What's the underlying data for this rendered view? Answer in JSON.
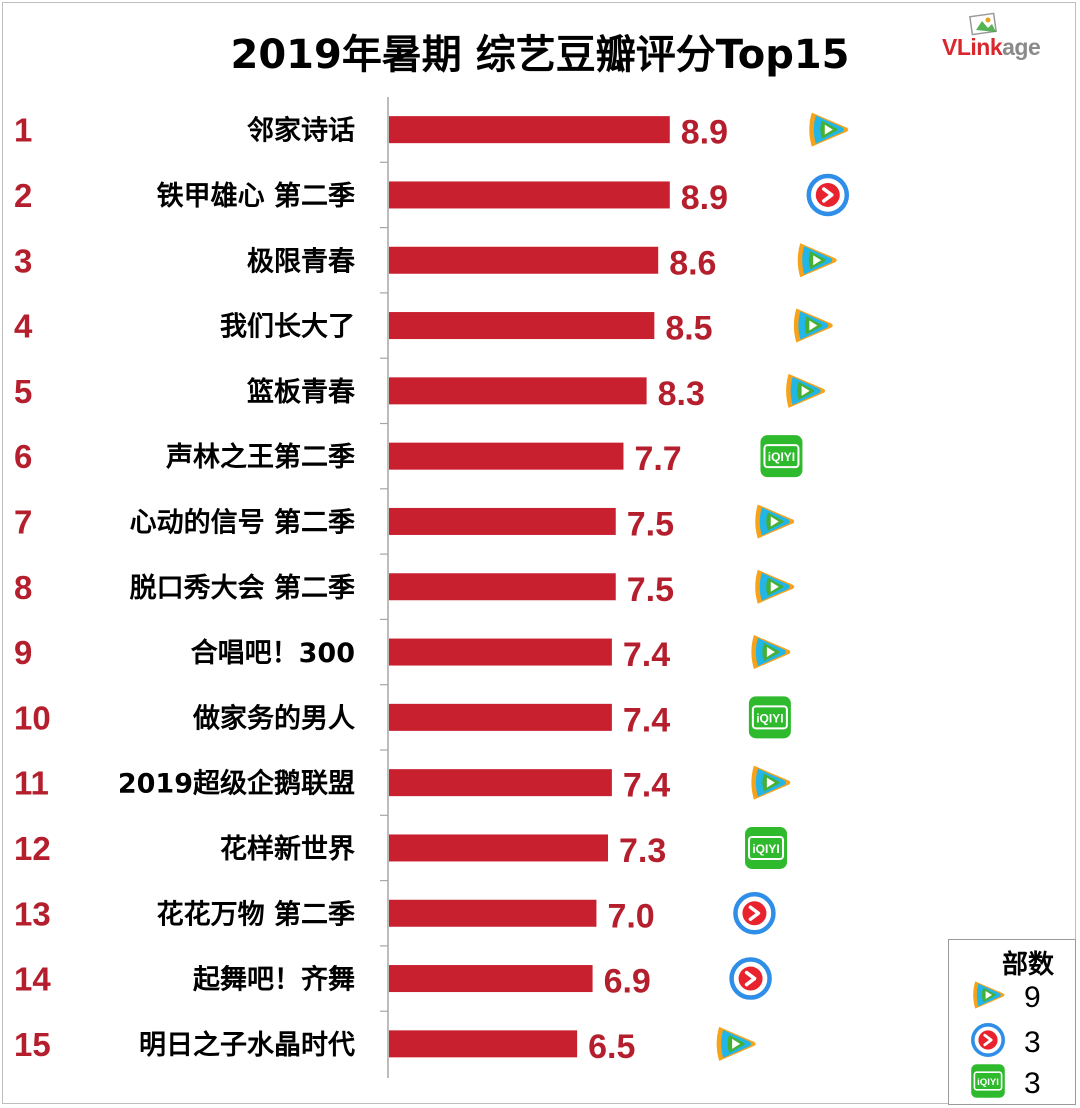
{
  "header": {
    "title": "2019年暑期 综艺豆瓣评分Top15",
    "brand_v": "VLink",
    "brand_rest": "age"
  },
  "platforms": {
    "tencent": {
      "icon": "tencent-video-icon",
      "colors": [
        "#f7a21b",
        "#22b5e8",
        "#45b035"
      ]
    },
    "youku": {
      "icon": "youku-icon",
      "colors": [
        "#2f8ee8",
        "#e8232d"
      ]
    },
    "iqiyi": {
      "icon": "iqiyi-icon",
      "colors": [
        "#2fba2e"
      ],
      "glyph": "iQIYI"
    }
  },
  "chart_data": {
    "type": "bar",
    "orientation": "horizontal",
    "title": "2019年暑期 综艺豆瓣评分Top15",
    "bar_color": "#c8202e",
    "label_color": "#b51f2d",
    "xlim": [
      0,
      10
    ],
    "grid": false,
    "rows": [
      {
        "rank": "1",
        "name": "邻家诗话",
        "score": 8.9,
        "platform": "tencent"
      },
      {
        "rank": "2",
        "name": "铁甲雄心 第二季",
        "score": 8.9,
        "platform": "youku"
      },
      {
        "rank": "3",
        "name": "极限青春",
        "score": 8.6,
        "platform": "tencent"
      },
      {
        "rank": "4",
        "name": "我们长大了",
        "score": 8.5,
        "platform": "tencent"
      },
      {
        "rank": "5",
        "name": "篮板青春",
        "score": 8.3,
        "platform": "tencent"
      },
      {
        "rank": "6",
        "name": "声林之王第二季",
        "score": 7.7,
        "platform": "iqiyi"
      },
      {
        "rank": "7",
        "name": "心动的信号 第二季",
        "score": 7.5,
        "platform": "tencent"
      },
      {
        "rank": "8",
        "name": "脱口秀大会 第二季",
        "score": 7.5,
        "platform": "tencent"
      },
      {
        "rank": "9",
        "name": "合唱吧！300",
        "score": 7.4,
        "platform": "tencent"
      },
      {
        "rank": "10",
        "name": "做家务的男人",
        "score": 7.4,
        "platform": "iqiyi"
      },
      {
        "rank": "11",
        "name": "2019超级企鹅联盟",
        "score": 7.4,
        "platform": "tencent"
      },
      {
        "rank": "12",
        "name": "花样新世界",
        "score": 7.3,
        "platform": "iqiyi"
      },
      {
        "rank": "13",
        "name": "花花万物 第二季",
        "score": 7.0,
        "platform": "youku"
      },
      {
        "rank": "14",
        "name": "起舞吧！齐舞",
        "score": 6.9,
        "platform": "youku"
      },
      {
        "rank": "15",
        "name": "明日之子水晶时代",
        "score": 6.5,
        "platform": "tencent"
      }
    ],
    "legend": {
      "title": "部数",
      "placement": "bottom-right",
      "entries": [
        {
          "platform": "tencent",
          "count": "9"
        },
        {
          "platform": "youku",
          "count": "3"
        },
        {
          "platform": "iqiyi",
          "count": "3"
        }
      ]
    }
  }
}
